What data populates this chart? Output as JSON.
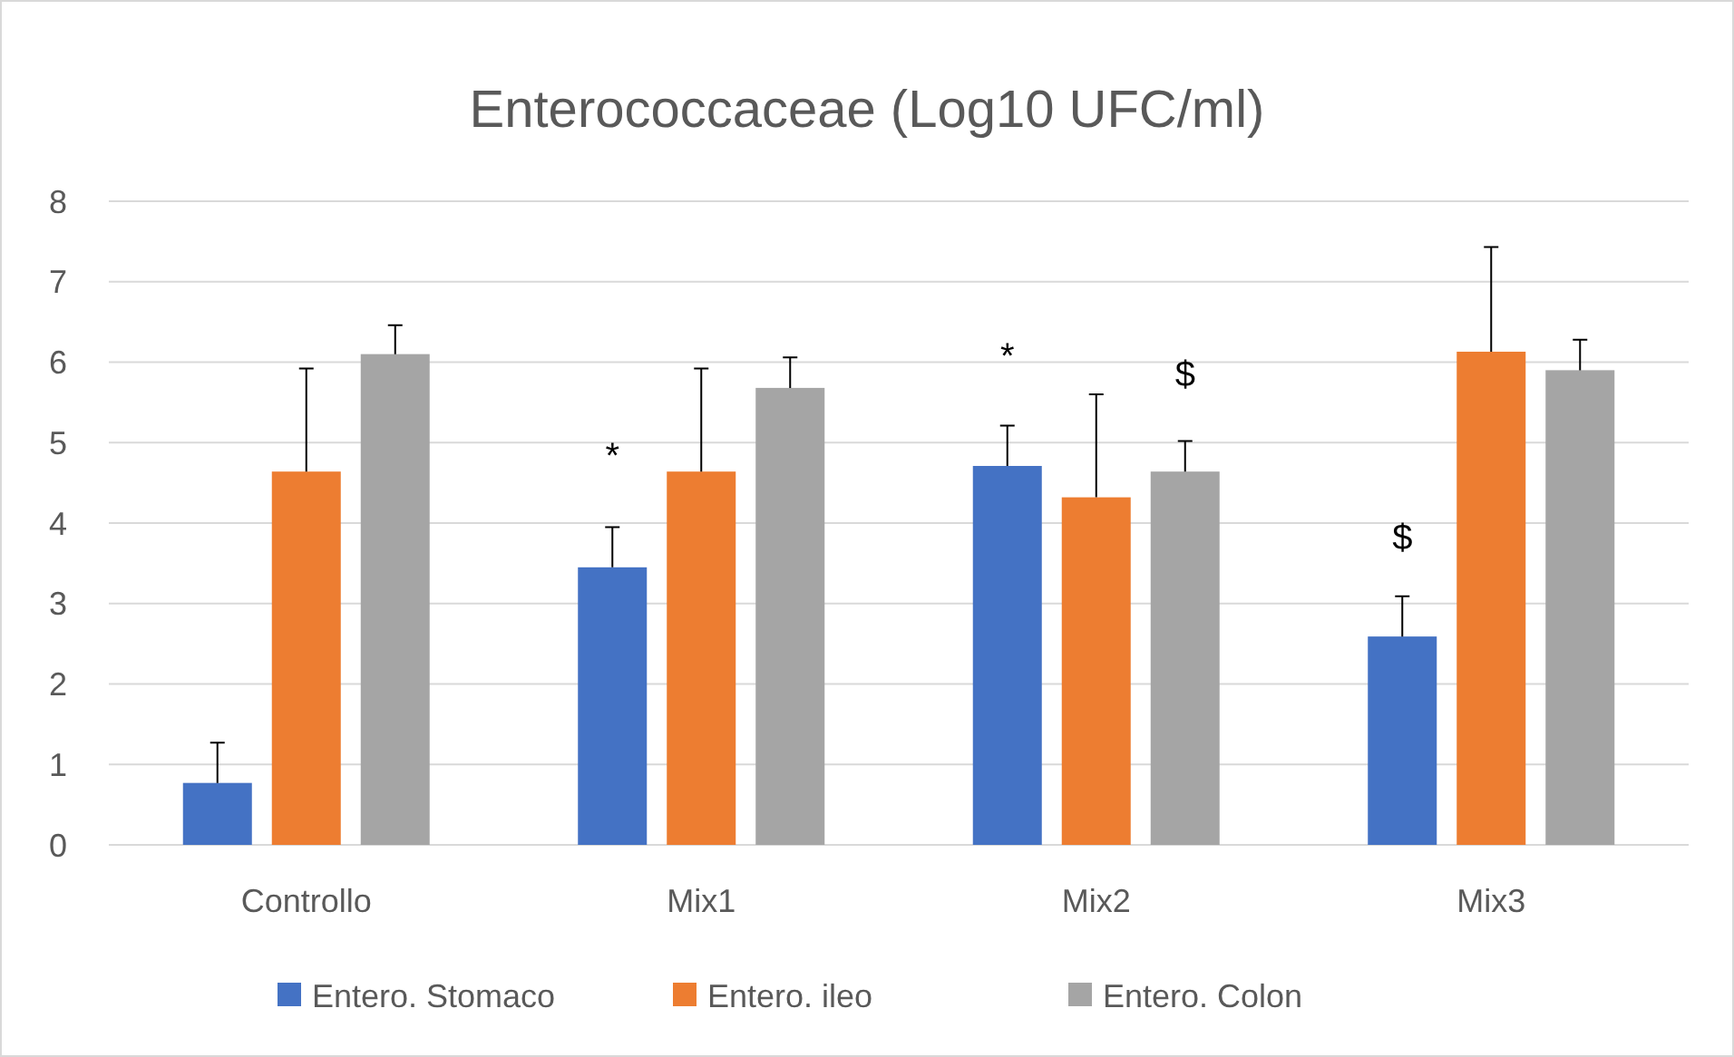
{
  "chart_data": {
    "type": "bar",
    "title": "Enterococcaceae (Log10 UFC/ml)",
    "categories": [
      "Controllo",
      "Mix1",
      "Mix2",
      "Mix3"
    ],
    "series": [
      {
        "name": "Entero. Stomaco",
        "color": "#4472c4",
        "values": [
          0.77,
          3.45,
          4.71,
          2.59
        ],
        "errors": [
          [
            0.77,
            1.27
          ],
          [
            3.45,
            3.95
          ],
          [
            4.71,
            5.21
          ],
          [
            2.59,
            3.09
          ]
        ]
      },
      {
        "name": "Entero. ileo",
        "color": "#ed7d31",
        "values": [
          4.64,
          4.64,
          4.32,
          6.13
        ],
        "errors": [
          [
            4.64,
            5.92
          ],
          [
            4.64,
            5.92
          ],
          [
            4.32,
            5.6
          ],
          [
            6.13,
            7.43
          ]
        ]
      },
      {
        "name": "Entero. Colon",
        "color": "#a5a5a5",
        "values": [
          6.1,
          5.68,
          4.64,
          5.9
        ],
        "errors": [
          [
            6.1,
            6.46
          ],
          [
            5.68,
            6.06
          ],
          [
            4.64,
            5.02
          ],
          [
            5.9,
            6.28
          ]
        ]
      }
    ],
    "ylim": [
      0,
      8
    ],
    "yticks": [
      0,
      1,
      2,
      3,
      4,
      5,
      6,
      7,
      8
    ],
    "grid": "y",
    "legend": "bottom",
    "annotations": [
      "*",
      "*",
      "$",
      "$"
    ]
  }
}
